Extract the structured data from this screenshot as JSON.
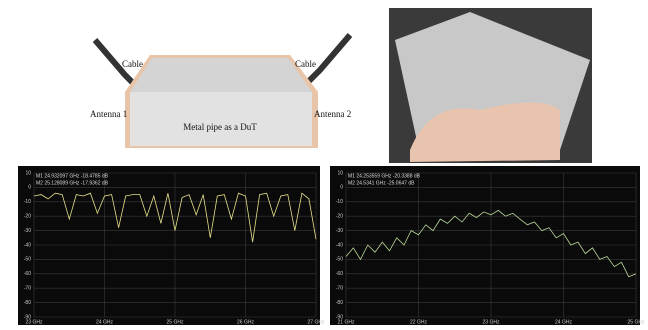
{
  "diagram": {
    "cable_left": "Cable",
    "cable_right": "Cable",
    "antenna_left": "Antenna 1",
    "antenna_right": "Antenna 2",
    "dut": "Metal pipe as a DuT"
  },
  "chart_data": [
    {
      "type": "line",
      "color": "#e6e08a",
      "markers": [
        "M1  24.932097 GHz  -18.4785 dB",
        "M2  25.128089 GHz  -17.9362 dB"
      ],
      "xlim": [
        23,
        27
      ],
      "xticks": [
        {
          "value": 23,
          "label": "23 GHz"
        },
        {
          "value": 24,
          "label": "24 GHz"
        },
        {
          "value": 25,
          "label": "25 GHz"
        },
        {
          "value": 26,
          "label": "26 GHz"
        },
        {
          "value": 27,
          "label": "27 GHz"
        }
      ],
      "ylim": [
        -90,
        10
      ],
      "yticks": [
        10,
        0,
        -10,
        -20,
        -30,
        -40,
        -50,
        -60,
        -70,
        -80,
        -90
      ],
      "grid": true,
      "x": [
        23,
        23.1,
        23.2,
        23.3,
        23.4,
        23.5,
        23.6,
        23.7,
        23.8,
        23.9,
        24,
        24.1,
        24.2,
        24.3,
        24.4,
        24.5,
        24.6,
        24.7,
        24.8,
        24.9,
        25,
        25.1,
        25.2,
        25.3,
        25.4,
        25.5,
        25.6,
        25.7,
        25.8,
        25.9,
        26,
        26.1,
        26.2,
        26.3,
        26.4,
        26.5,
        26.6,
        26.7,
        26.8,
        26.9,
        27
      ],
      "values": [
        -6,
        -5,
        -8,
        -4,
        -5,
        -22,
        -5,
        -6,
        -4,
        -18,
        -6,
        -5,
        -28,
        -6,
        -5,
        -5,
        -20,
        -6,
        -25,
        -4,
        -30,
        -7,
        -5,
        -19,
        -5,
        -35,
        -6,
        -5,
        -22,
        -4,
        -6,
        -38,
        -5,
        -4,
        -20,
        -6,
        -5,
        -30,
        -4,
        -8,
        -36
      ]
    },
    {
      "type": "line",
      "color": "#b8d89a",
      "markers": [
        "M1  24.253559 GHz  -20.3388 dB",
        "M2  24.5341 GHz  -25.0647 dB"
      ],
      "xlim": [
        21,
        25
      ],
      "xticks": [
        {
          "value": 21,
          "label": "21 GHz"
        },
        {
          "value": 22,
          "label": "22 GHz"
        },
        {
          "value": 23,
          "label": "23 GHz"
        },
        {
          "value": 24,
          "label": "24 GHz"
        },
        {
          "value": 25,
          "label": "25 GHz"
        }
      ],
      "ylim": [
        -90,
        10
      ],
      "yticks": [
        10,
        0,
        -10,
        -20,
        -30,
        -40,
        -50,
        -60,
        -70,
        -80,
        -90
      ],
      "grid": true,
      "x": [
        21,
        21.1,
        21.2,
        21.3,
        21.4,
        21.5,
        21.6,
        21.7,
        21.8,
        21.9,
        22,
        22.1,
        22.2,
        22.3,
        22.4,
        22.5,
        22.6,
        22.7,
        22.8,
        22.9,
        23,
        23.1,
        23.2,
        23.3,
        23.4,
        23.5,
        23.6,
        23.7,
        23.8,
        23.9,
        24,
        24.1,
        24.2,
        24.3,
        24.4,
        24.5,
        24.6,
        24.7,
        24.8,
        24.9,
        25
      ],
      "values": [
        -48,
        -42,
        -50,
        -40,
        -45,
        -38,
        -44,
        -35,
        -40,
        -30,
        -33,
        -26,
        -30,
        -22,
        -25,
        -20,
        -24,
        -18,
        -21,
        -17,
        -19,
        -16,
        -20,
        -18,
        -22,
        -26,
        -24,
        -30,
        -28,
        -35,
        -32,
        -40,
        -38,
        -46,
        -42,
        -50,
        -48,
        -55,
        -52,
        -62,
        -60
      ]
    }
  ]
}
